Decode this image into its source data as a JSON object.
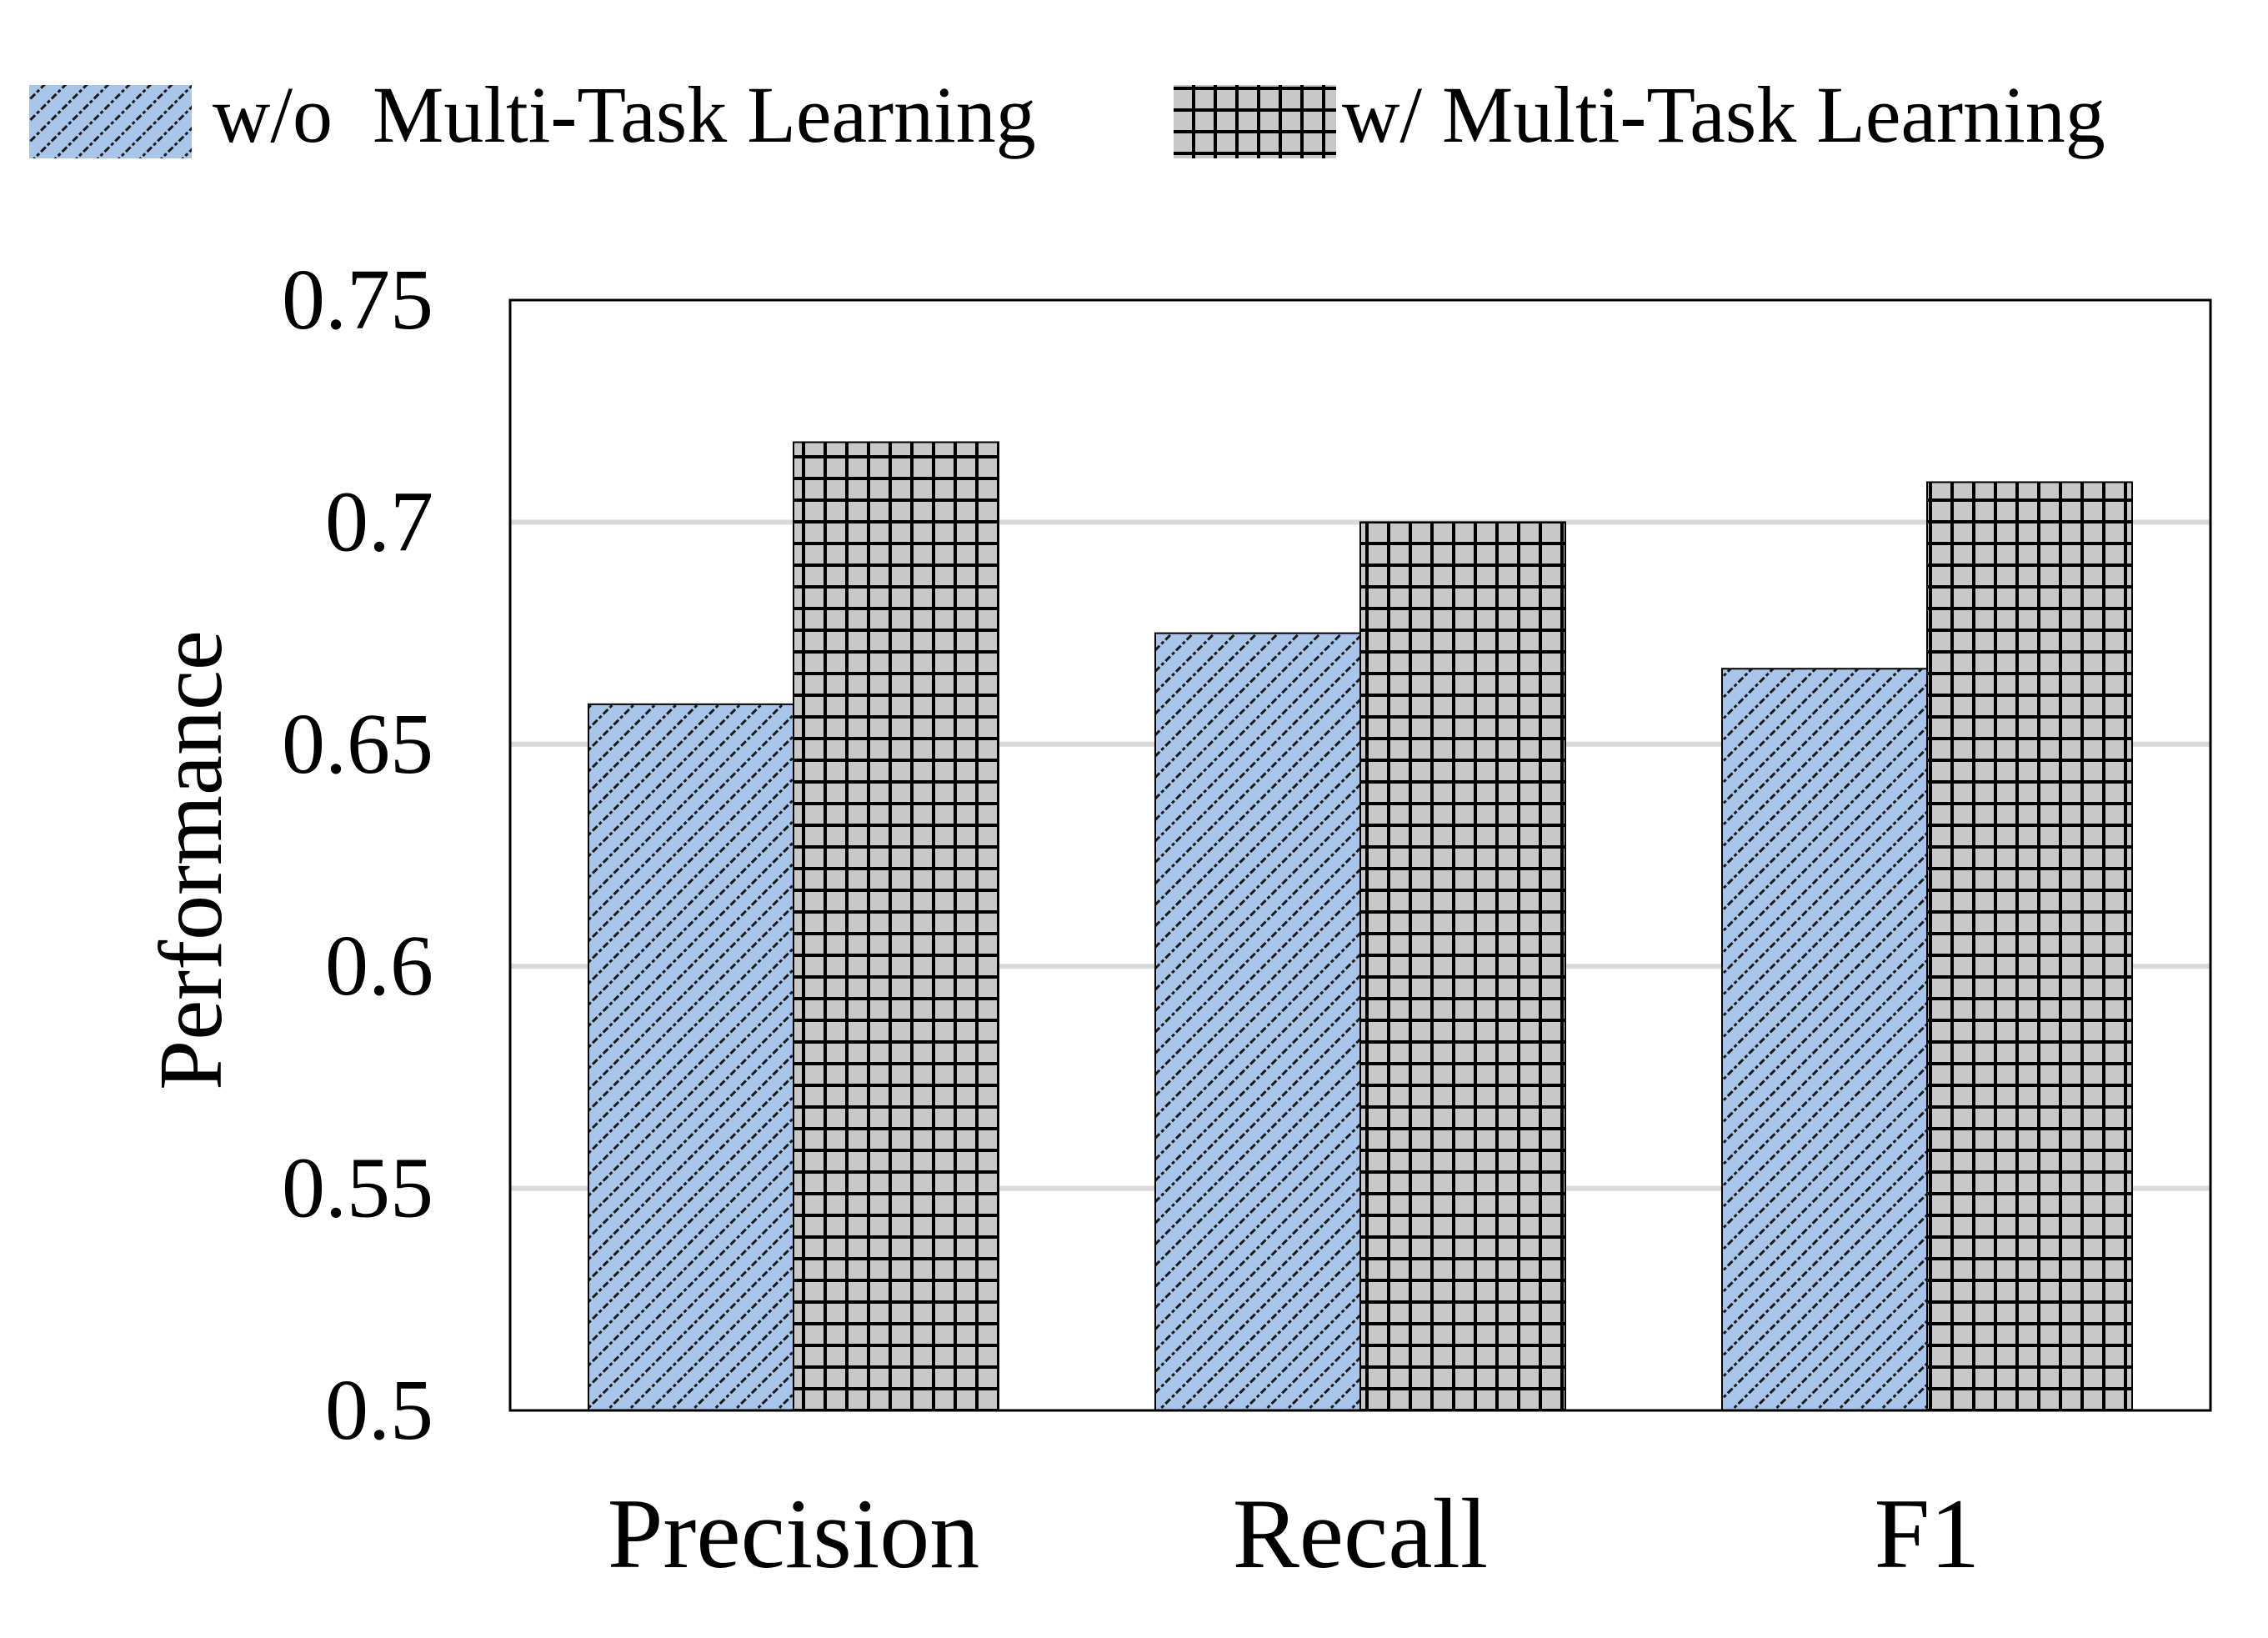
{
  "chart_data": {
    "type": "bar",
    "categories": [
      "Precision",
      "Recall",
      "F1"
    ],
    "series": [
      {
        "name": "w/o  Multi-Task Learning",
        "values": [
          0.659,
          0.675,
          0.667
        ],
        "color": "#a9c6ea",
        "pattern": "diagonal-hatch"
      },
      {
        "name": "w/ Multi-Task Learning",
        "values": [
          0.718,
          0.7,
          0.709
        ],
        "color": "#c8c8c8",
        "pattern": "grid"
      }
    ],
    "title": "",
    "xlabel": "",
    "ylabel": "Performance",
    "ylim": [
      0.5,
      0.75
    ],
    "yticks": [
      "0.5",
      "0.55",
      "0.6",
      "0.65",
      "0.7",
      "0.75"
    ],
    "grid": true,
    "legend": "top"
  }
}
